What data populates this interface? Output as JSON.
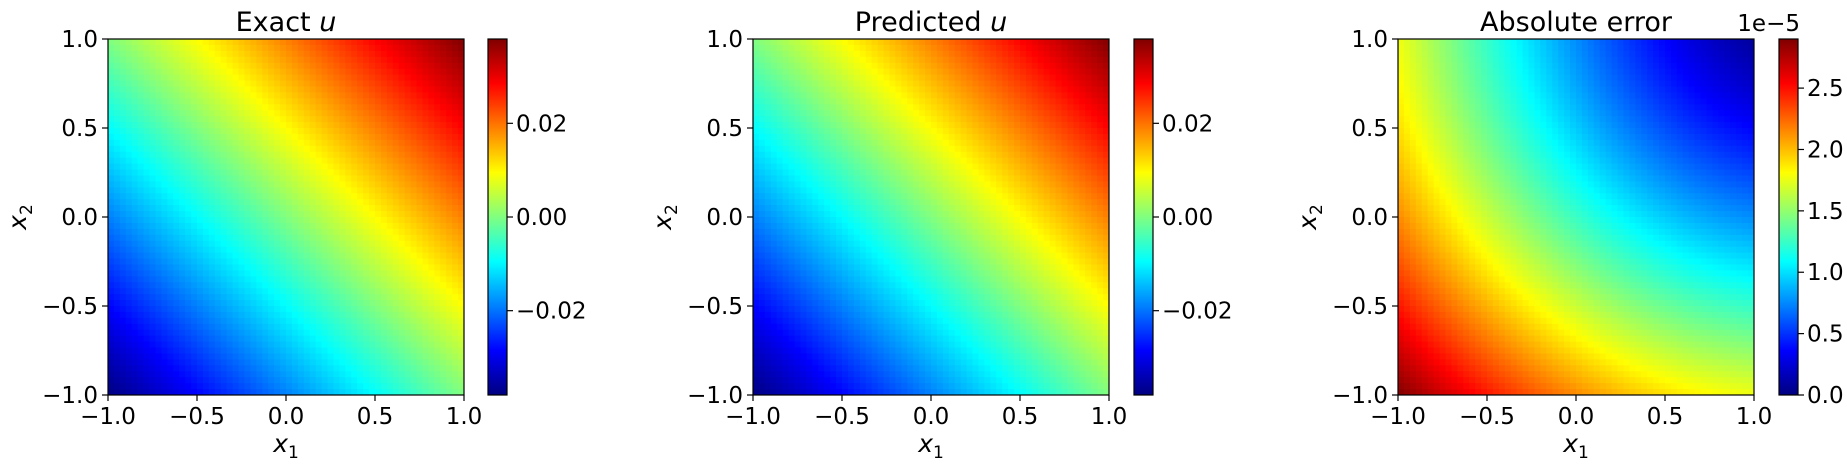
{
  "chart_data": [
    {
      "type": "heatmap",
      "title_prefix": "Exact ",
      "title_var": "u",
      "xlabel": {
        "base": "x",
        "sub": "1"
      },
      "ylabel": {
        "base": "x",
        "sub": "2"
      },
      "xlim": [
        -1.0,
        1.0
      ],
      "ylim": [
        -1.0,
        1.0
      ],
      "xticks": [
        "−1.0",
        "−0.5",
        "0.0",
        "0.5",
        "1.0"
      ],
      "yticks": [
        "−1.0",
        "−0.5",
        "0.0",
        "0.5",
        "1.0"
      ],
      "field": "linear in (x1 + x2)",
      "colormap": "jet",
      "colorbar": {
        "range": [
          -0.038,
          0.038
        ],
        "ticks": [
          -0.02,
          0.0,
          0.02
        ],
        "tick_labels": [
          "−0.02",
          "0.00",
          "0.02"
        ],
        "offset_label": ""
      }
    },
    {
      "type": "heatmap",
      "title_prefix": "Predicted ",
      "title_var": "u",
      "xlabel": {
        "base": "x",
        "sub": "1"
      },
      "ylabel": {
        "base": "x",
        "sub": "2"
      },
      "xlim": [
        -1.0,
        1.0
      ],
      "ylim": [
        -1.0,
        1.0
      ],
      "xticks": [
        "−1.0",
        "−0.5",
        "0.0",
        "0.5",
        "1.0"
      ],
      "yticks": [
        "−1.0",
        "−0.5",
        "0.0",
        "0.5",
        "1.0"
      ],
      "field": "linear in (x1 + x2)",
      "colormap": "jet",
      "colorbar": {
        "range": [
          -0.038,
          0.038
        ],
        "ticks": [
          -0.02,
          0.0,
          0.02
        ],
        "tick_labels": [
          "−0.02",
          "0.00",
          "0.02"
        ],
        "offset_label": ""
      }
    },
    {
      "type": "heatmap",
      "title_prefix": "Absolute error",
      "title_var": "",
      "xlabel": {
        "base": "x",
        "sub": "1"
      },
      "ylabel": {
        "base": "x",
        "sub": "2"
      },
      "xlim": [
        -1.0,
        1.0
      ],
      "ylim": [
        -1.0,
        1.0
      ],
      "xticks": [
        "−1.0",
        "−0.5",
        "0.0",
        "0.5",
        "1.0"
      ],
      "yticks": [
        "−1.0",
        "−0.5",
        "0.0",
        "0.5",
        "1.0"
      ],
      "field": "radial error, max at (-1,-1), min at (1,1)",
      "colormap": "jet",
      "colorbar": {
        "range": [
          0.0,
          2.9
        ],
        "ticks": [
          0.0,
          0.5,
          1.0,
          1.5,
          2.0,
          2.5
        ],
        "tick_labels": [
          "0.0",
          "0.5",
          "1.0",
          "1.5",
          "2.0",
          "2.5"
        ],
        "offset_label": "1e−5"
      }
    }
  ]
}
